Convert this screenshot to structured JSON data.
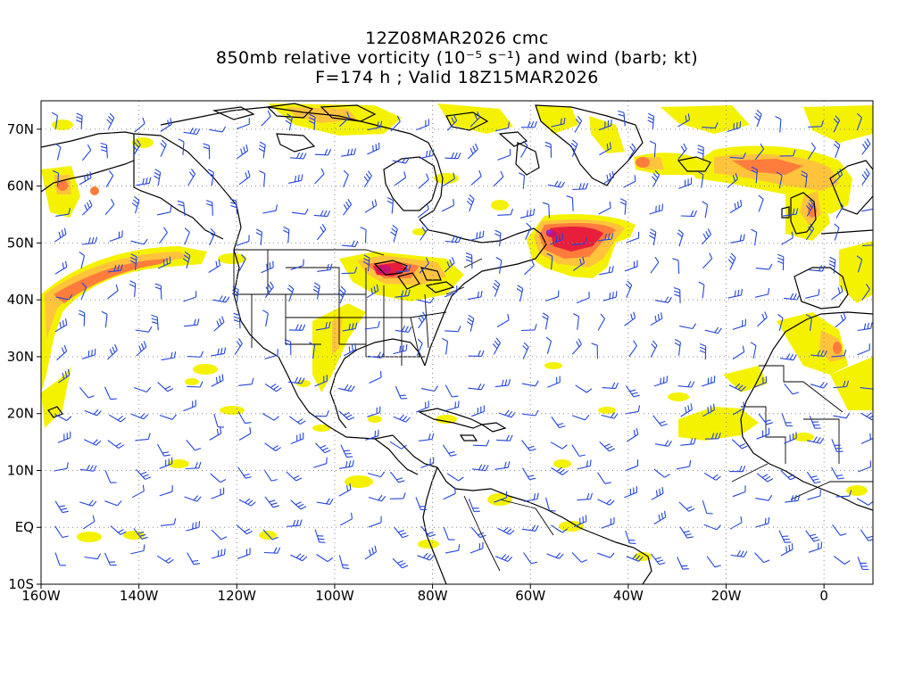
{
  "title": {
    "line1": "12Z08MAR2026 cmc",
    "line2": "850mb relative vorticity (10⁻⁵ s⁻¹) and wind (barb; kt)",
    "line3": "F=174 h ; Valid 18Z15MAR2026"
  },
  "map": {
    "projection": "cylindrical equidistant",
    "lon_range": [
      -160,
      10
    ],
    "lat_range": [
      -10,
      75
    ],
    "lat_ticks": [
      {
        "lat": 70,
        "label": "70N"
      },
      {
        "lat": 60,
        "label": "60N"
      },
      {
        "lat": 50,
        "label": "50N"
      },
      {
        "lat": 40,
        "label": "40N"
      },
      {
        "lat": 30,
        "label": "30N"
      },
      {
        "lat": 20,
        "label": "20N"
      },
      {
        "lat": 10,
        "label": "10N"
      },
      {
        "lat": 0,
        "label": "EQ"
      },
      {
        "lat": -10,
        "label": "10S"
      }
    ],
    "lon_ticks": [
      {
        "lon": -160,
        "label": "160W"
      },
      {
        "lon": -140,
        "label": "140W"
      },
      {
        "lon": -120,
        "label": "120W"
      },
      {
        "lon": -100,
        "label": "100W"
      },
      {
        "lon": -80,
        "label": "80W"
      },
      {
        "lon": -60,
        "label": "60W"
      },
      {
        "lon": -40,
        "label": "40W"
      },
      {
        "lon": -20,
        "label": "20W"
      },
      {
        "lon": 0,
        "label": "0"
      }
    ],
    "colors": {
      "vort_low": "#f4f200",
      "vort_mid": "#ffc43c",
      "vort_high": "#ff7d3c",
      "vort_vhigh": "#e81e3c",
      "vort_max": "#c8146e",
      "vort_peak": "#8e2bd6",
      "barb": "#2244dd",
      "coast": "#000000",
      "grid": "#8a8a8a"
    }
  }
}
